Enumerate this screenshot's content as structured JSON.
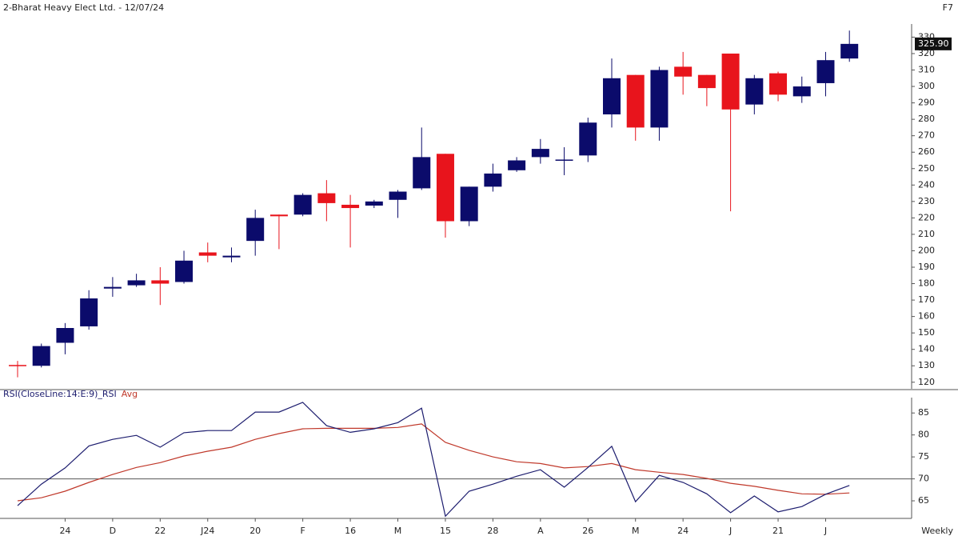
{
  "chart_data": [
    {
      "type": "candlestick",
      "title": "2-Bharat Heavy Elect Ltd. - 12/07/24",
      "panel_label": "F7",
      "open": [
        130.5,
        130,
        144,
        154,
        177,
        179,
        182,
        181,
        199,
        196,
        206,
        222,
        222,
        235,
        228,
        227.5,
        231,
        238,
        259,
        218,
        239,
        249,
        257,
        255,
        258,
        283,
        307,
        275,
        312,
        307,
        320,
        289,
        308,
        294,
        302,
        317
      ],
      "high": [
        133,
        143.5,
        156,
        176,
        184,
        186,
        190,
        200,
        205,
        202,
        225,
        222,
        235,
        243,
        234,
        231,
        237,
        275,
        259,
        239,
        253,
        257,
        268,
        263,
        281,
        317,
        307,
        312,
        321,
        307,
        320,
        307,
        309,
        306,
        321,
        334
      ],
      "low": [
        123,
        129,
        137,
        152,
        172,
        178,
        167,
        180,
        193,
        193,
        197,
        201,
        221,
        218,
        202,
        226,
        220,
        237,
        208,
        215,
        236,
        248,
        253,
        246,
        254,
        275,
        267,
        267,
        295,
        288,
        224,
        283,
        291,
        290,
        294,
        315
      ],
      "close": [
        130,
        142,
        153,
        171,
        178,
        182,
        180,
        194,
        197,
        197,
        220,
        221,
        234,
        229,
        226,
        230,
        236,
        257,
        218,
        239,
        247,
        255,
        262,
        255.5,
        278,
        305,
        275,
        310,
        306,
        299,
        286,
        305,
        295,
        300,
        316,
        325.9
      ],
      "up_color": "#0b0b6b",
      "down_color": "#e8141c",
      "ylim": [
        116,
        338
      ],
      "yticks": [
        120,
        130,
        140,
        150,
        160,
        170,
        180,
        190,
        200,
        210,
        220,
        230,
        240,
        250,
        260,
        270,
        280,
        290,
        300,
        310,
        320,
        330
      ],
      "last_price": {
        "value": 325.9,
        "label": "325.90"
      }
    },
    {
      "type": "line",
      "x_label": "Weekly",
      "categories": [
        null,
        null,
        "24",
        null,
        "D",
        null,
        "22",
        null,
        "J24",
        null,
        "20",
        null,
        "F",
        null,
        "16",
        null,
        "M",
        null,
        "15",
        null,
        "28",
        null,
        "A",
        null,
        "26",
        null,
        "M",
        null,
        "24",
        null,
        "J",
        null,
        "21",
        null,
        "J",
        null
      ],
      "series": [
        {
          "name": "RSI(CloseLine:14:E:9)_RSI",
          "color": "#1c1c6e",
          "values": [
            63.9,
            68.8,
            72.5,
            77.5,
            79,
            79.9,
            77.2,
            80.5,
            81,
            81,
            85.2,
            85.2,
            87.4,
            82.1,
            80.6,
            81.4,
            82.8,
            86.1,
            61.5,
            67.2,
            68.8,
            70.6,
            72.1,
            68.1,
            72.6,
            77.4,
            64.8,
            70.8,
            69.2,
            66.6,
            62.3,
            66.1,
            62.5,
            63.7,
            66.5,
            68.5
          ]
        },
        {
          "name": "Avg",
          "color": "#c0392b",
          "values": [
            65,
            65.7,
            67.2,
            69.2,
            71,
            72.6,
            73.7,
            75.2,
            76.3,
            77.2,
            79,
            80.3,
            81.4,
            81.5,
            81.5,
            81.5,
            81.7,
            82.5,
            78.3,
            76.5,
            75,
            73.9,
            73.5,
            72.5,
            72.8,
            73.5,
            72.1,
            71.5,
            71,
            70.1,
            69,
            68.3,
            67.4,
            66.6,
            66.5,
            66.8
          ]
        }
      ],
      "ylim": [
        61,
        88.5
      ],
      "yticks": [
        65,
        70,
        75,
        80,
        85
      ],
      "ref_level": 70
    }
  ]
}
